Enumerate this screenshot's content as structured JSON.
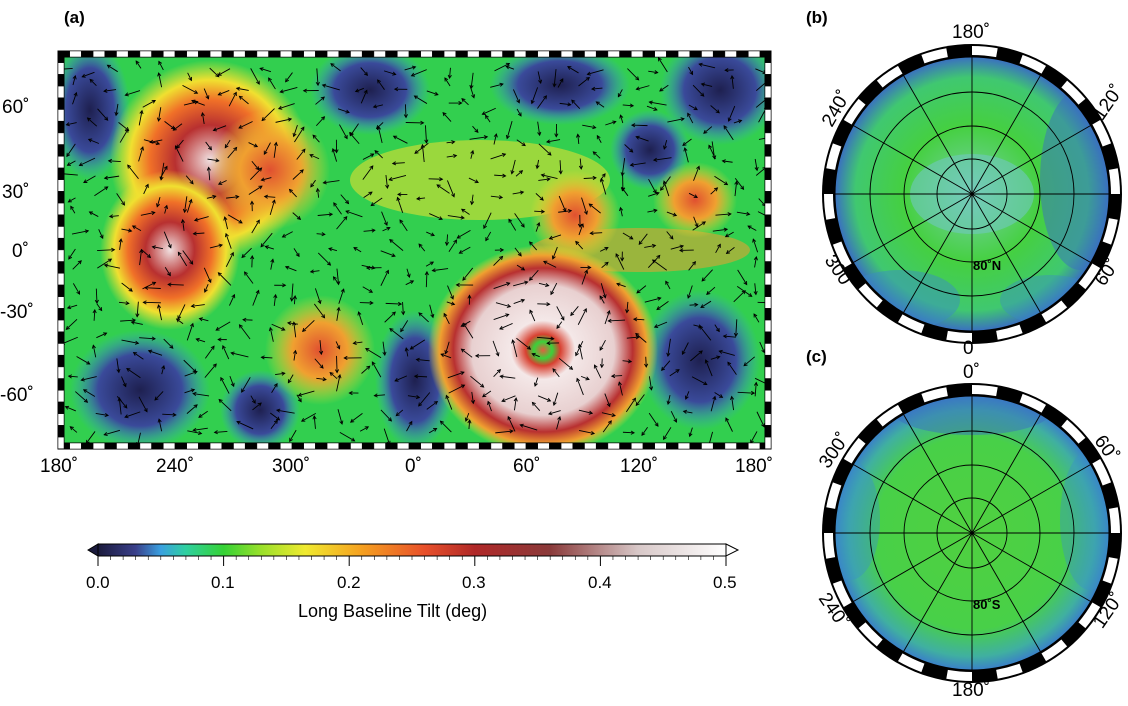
{
  "panels": {
    "a": {
      "label": "(a)"
    },
    "b": {
      "label": "(b)",
      "lat_label": "80˚N",
      "ticks": [
        "180˚",
        "120˚",
        "60˚",
        "0˚",
        "300˚",
        "240˚"
      ]
    },
    "c": {
      "label": "(c)",
      "lat_label": "80˚S",
      "ticks": [
        "0˚",
        "60˚",
        "120˚",
        "180˚",
        "240˚",
        "300˚"
      ]
    }
  },
  "main_map": {
    "lat_ticks": [
      "60˚",
      "30˚",
      "0˚",
      "-30˚",
      "-60˚"
    ],
    "lon_ticks": [
      "180˚",
      "240˚",
      "300˚",
      "0˚",
      "60˚",
      "120˚",
      "180˚"
    ]
  },
  "colorbar": {
    "title": "Long Baseline Tilt (deg)",
    "ticks": [
      "0.0",
      "0.1",
      "0.2",
      "0.3",
      "0.4",
      "0.5"
    ],
    "range": [
      0.0,
      0.5
    ],
    "colors": [
      "#1a1a3c",
      "#3a3f8a",
      "#3aa0e0",
      "#2fd0a0",
      "#35d235",
      "#9ae02a",
      "#f0ea30",
      "#f5a020",
      "#e8502a",
      "#b02828",
      "#8a3a3a",
      "#d8c8c8",
      "#ffffff"
    ]
  },
  "colors": {
    "low": "#2a2f78",
    "mid": "#3ad23a",
    "high": "#c83a2a",
    "peak": "#f4e4e4"
  }
}
